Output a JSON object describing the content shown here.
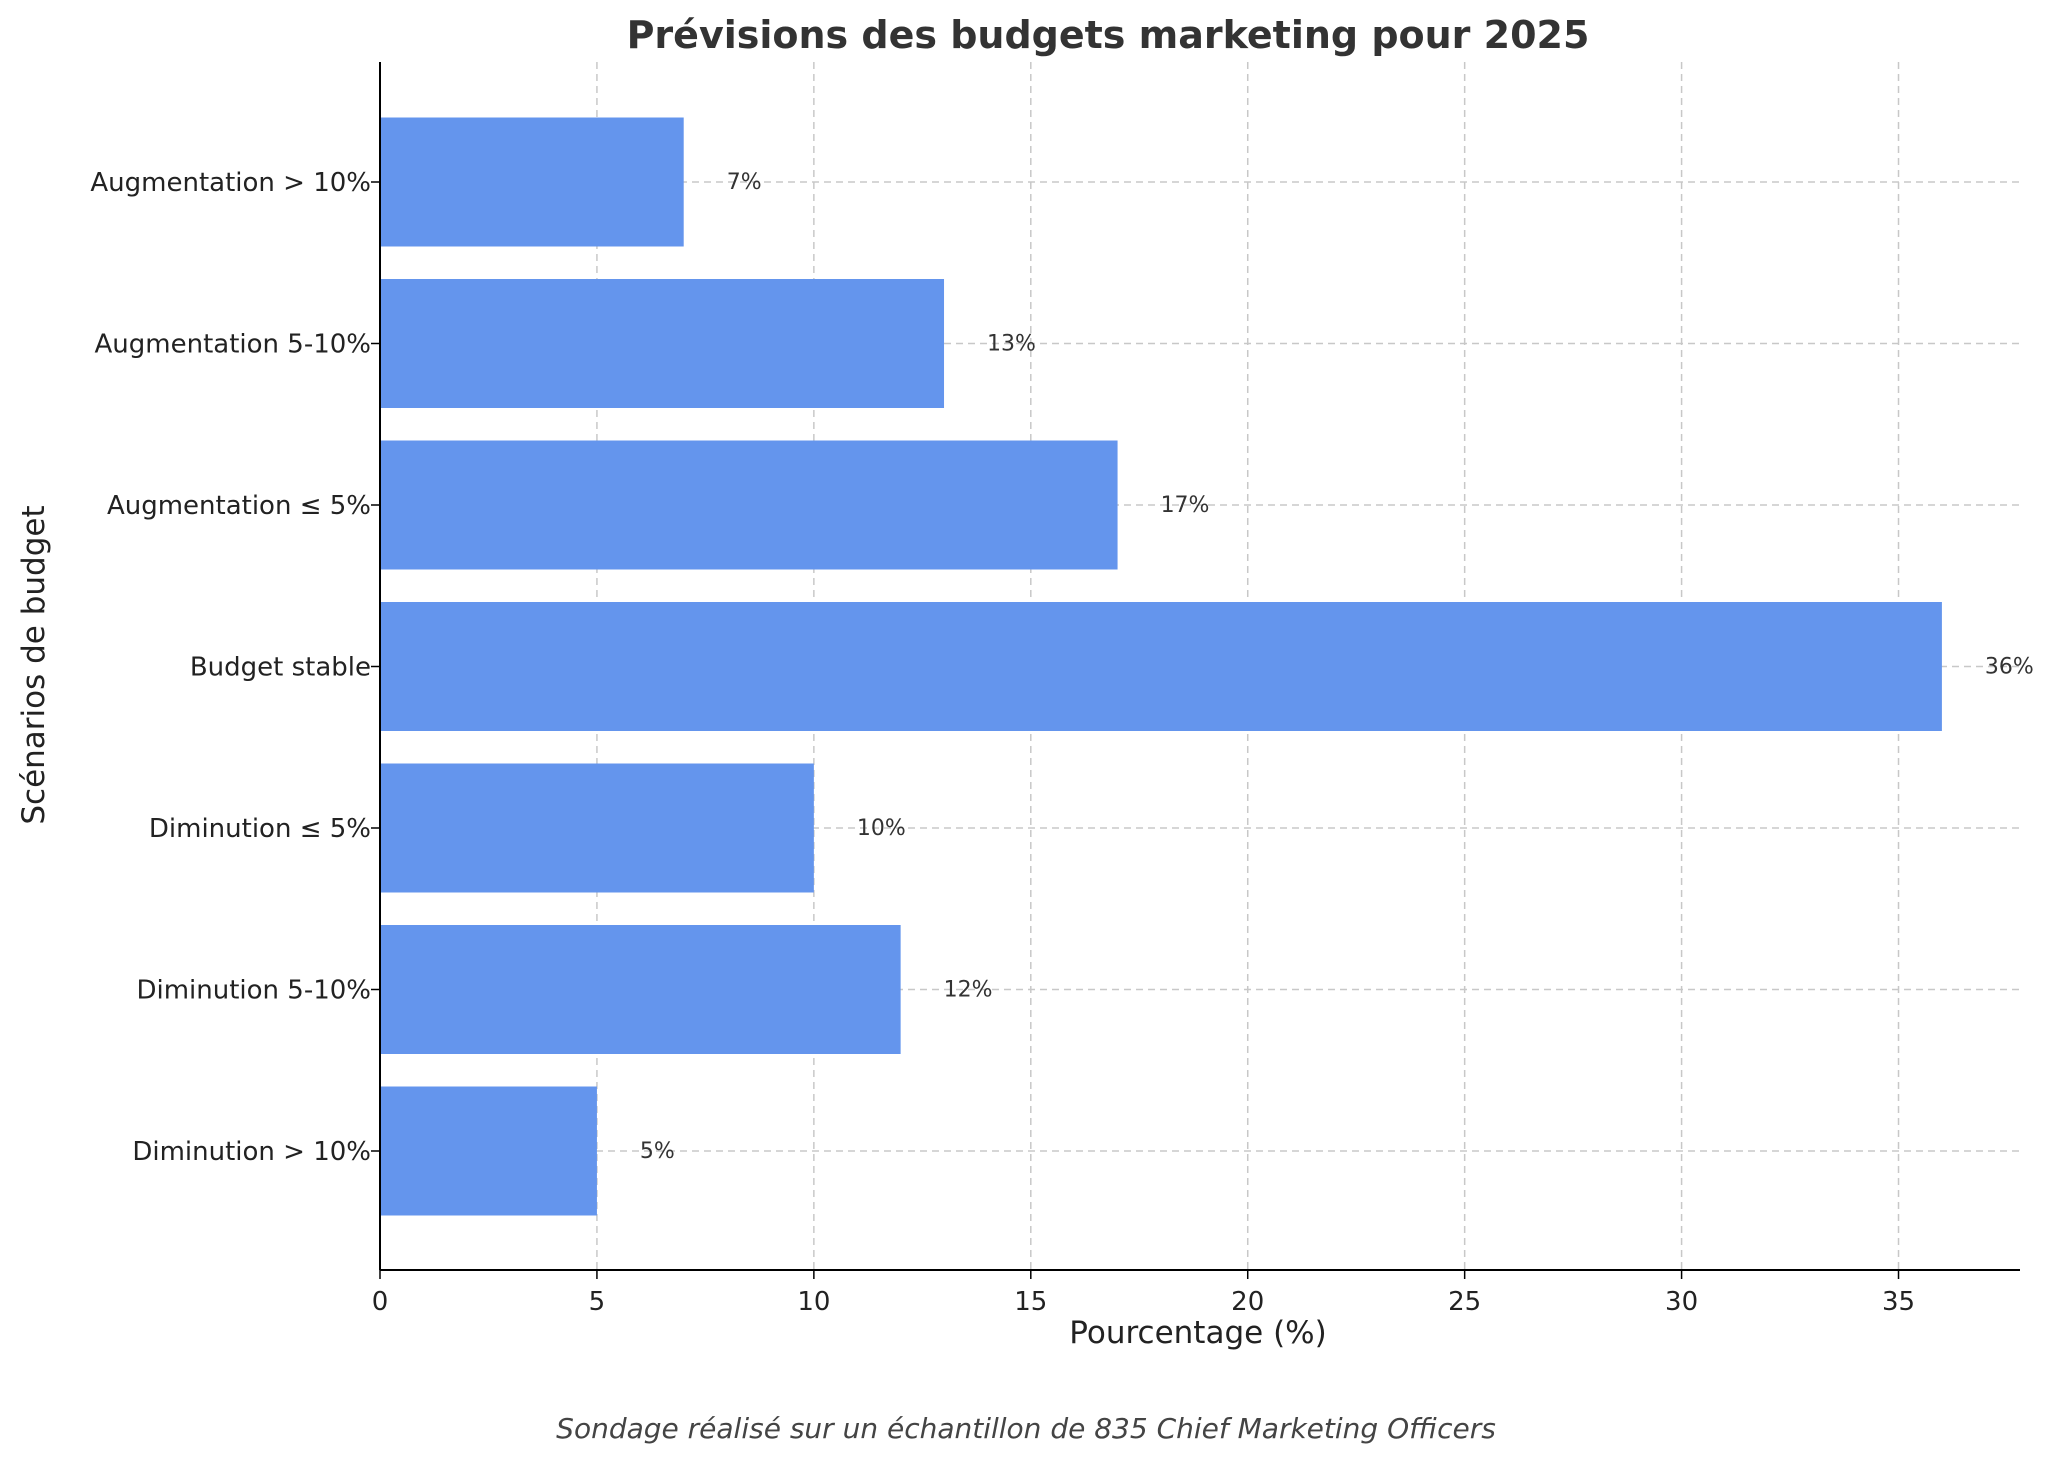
{
  "chart_data": {
    "type": "bar",
    "orientation": "horizontal",
    "title": "Prévisions des budgets marketing pour 2025",
    "xlabel": "Pourcentage (%)",
    "ylabel": "Scénarios de budget",
    "categories": [
      "Augmentation > 10%",
      "Augmentation 5-10%",
      "Augmentation ≤ 5%",
      "Budget stable",
      "Diminution ≤ 5%",
      "Diminution 5-10%",
      "Diminution > 10%"
    ],
    "values": [
      7,
      13,
      17,
      36,
      10,
      12,
      5
    ],
    "value_labels": [
      "7%",
      "13%",
      "17%",
      "36%",
      "10%",
      "12%",
      "5%"
    ],
    "xlim": [
      0,
      37.8
    ],
    "xticks": [
      "0",
      "5",
      "10",
      "15",
      "20",
      "25",
      "30",
      "35"
    ],
    "grid": true,
    "bar_color": "#6495ED",
    "caption": "Sondage réalisé sur un échantillon de 835 Chief Marketing Officers"
  }
}
